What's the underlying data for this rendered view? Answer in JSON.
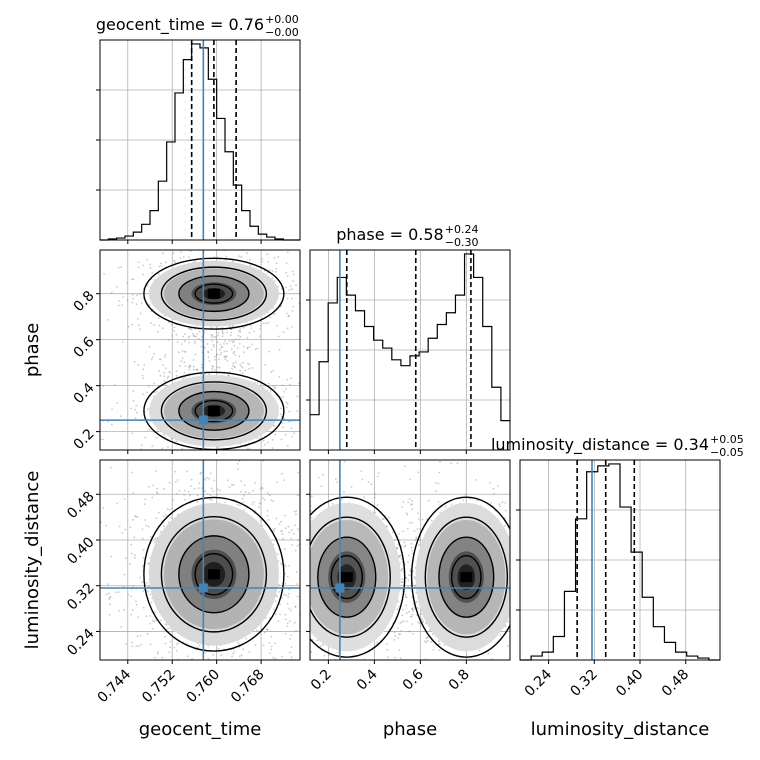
{
  "chart_data": {
    "type": "corner",
    "parameters": [
      {
        "name": "geocent_time",
        "label": "geocent_time",
        "truth": 0.7576,
        "title": {
          "prefix": "geocent_time = 0.76",
          "upper": "+0.00",
          "lower": "−0.00"
        },
        "quantiles": [
          0.7555,
          0.7595,
          0.7635
        ],
        "range": [
          0.739,
          0.775
        ],
        "ticks": [
          0.744,
          0.752,
          0.76,
          0.768
        ],
        "tick_labels": [
          "0.744",
          "0.752",
          "0.760",
          "0.768"
        ],
        "hist": [
          0.0,
          0.005,
          0.01,
          0.02,
          0.04,
          0.08,
          0.15,
          0.3,
          0.5,
          0.75,
          0.92,
          1.0,
          0.98,
          0.82,
          0.62,
          0.45,
          0.28,
          0.15,
          0.07,
          0.03,
          0.015,
          0.005,
          0.0,
          0.0
        ]
      },
      {
        "name": "phase",
        "label": "phase",
        "truth": 0.25,
        "title": {
          "prefix": "phase = 0.58",
          "upper": "+0.24",
          "lower": "−0.30"
        },
        "quantiles": [
          0.28,
          0.58,
          0.82
        ],
        "range": [
          0.12,
          0.99
        ],
        "ticks": [
          0.2,
          0.4,
          0.6,
          0.8
        ],
        "tick_labels": [
          "0.2",
          "0.4",
          "0.6",
          "0.8"
        ],
        "hist": [
          0.18,
          0.45,
          0.75,
          0.88,
          0.79,
          0.71,
          0.63,
          0.56,
          0.52,
          0.46,
          0.43,
          0.48,
          0.5,
          0.57,
          0.64,
          0.7,
          0.79,
          1.0,
          0.88,
          0.63,
          0.32,
          0.15
        ]
      },
      {
        "name": "luminosity_distance",
        "label": "luminosity_distance",
        "truth": 0.316,
        "title": {
          "prefix": "luminosity_distance = 0.34",
          "upper": "+0.05",
          "lower": "−0.05"
        },
        "quantiles": [
          0.29,
          0.34,
          0.39
        ],
        "range": [
          0.19,
          0.54
        ],
        "ticks": [
          0.24,
          0.32,
          0.4,
          0.48
        ],
        "tick_labels": [
          "0.24",
          "0.32",
          "0.40",
          "0.48"
        ],
        "hist": [
          0.0,
          0.02,
          0.04,
          0.12,
          0.35,
          0.72,
          0.96,
          0.99,
          1.0,
          0.78,
          0.55,
          0.32,
          0.17,
          0.09,
          0.04,
          0.02,
          0.01,
          0.0
        ]
      }
    ],
    "histogram_ylim": [
      0,
      1.02
    ],
    "truth_color": "#4682b4",
    "line_color": "#000000",
    "grid": true
  }
}
